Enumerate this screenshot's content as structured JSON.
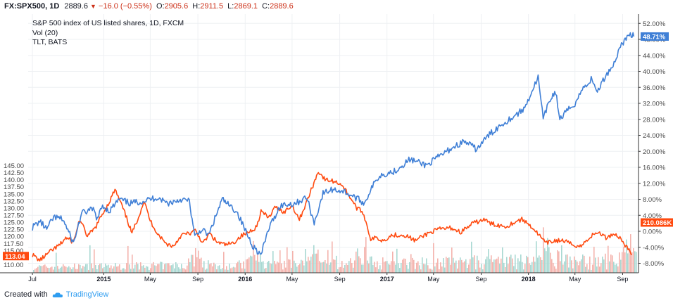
{
  "header": {
    "symbol": "FX:SPX500, 1D",
    "last": "2889.6",
    "change": "−16.0 (−0.55%)",
    "open_label": "O:",
    "open": "2905.6",
    "high_label": "H:",
    "high": "2911.5",
    "low_label": "L:",
    "low": "2869.1",
    "close_label": "C:",
    "close": "2889.6"
  },
  "legend": {
    "main": "S&P 500 index of US listed shares, 1D, FXCM",
    "volume": "Vol (20)",
    "compare": "TLT, BATS"
  },
  "footer": {
    "created_with": "Created with",
    "brand": "TradingView"
  },
  "colors": {
    "tlt": "#ff4a0f",
    "spx": "#3f7fd6",
    "vol_up": "#a8d8d2",
    "vol_down": "#f4b3ad",
    "grid": "#eef0f3",
    "axis": "#333333"
  },
  "chart_data": {
    "type": "line",
    "x_ticks": [
      "Jul",
      "2015",
      "May",
      "Sep",
      "2016",
      "May",
      "Sep",
      "2017",
      "May",
      "Sep",
      "2018",
      "May",
      "Sep"
    ],
    "year_ticks": [
      "2015",
      "2016",
      "2017",
      "2018"
    ],
    "left_axis": {
      "ticks": [
        "110.00",
        "112.50",
        "115.00",
        "117.50",
        "120.00",
        "122.50",
        "125.00",
        "127.50",
        "130.00",
        "132.50",
        "135.00",
        "137.50",
        "140.00",
        "142.50",
        "145.00"
      ],
      "range": [
        108.5,
        145.5
      ],
      "last_value_label": "113.04"
    },
    "right_axis": {
      "ticks": [
        "52.00%",
        "48.00%",
        "44.00%",
        "40.00%",
        "36.00%",
        "32.00%",
        "28.00%",
        "24.00%",
        "20.00%",
        "16.00%",
        "12.00%",
        "8.00%",
        "4.00%",
        "0.00%",
        "-4.00%",
        "-8.00%"
      ],
      "range": [
        -10.0,
        54.0
      ],
      "last_value_label": "48.71%",
      "volume_label": "210.086K"
    },
    "series": [
      {
        "name": "TLT, BATS",
        "axis": "left",
        "x": [
          "2014-07-01",
          "2014-07-20",
          "2014-08-15",
          "2014-09-10",
          "2014-09-25",
          "2014-10-15",
          "2014-10-31",
          "2014-11-20",
          "2014-12-10",
          "2014-12-31",
          "2015-01-15",
          "2015-01-30",
          "2015-02-15",
          "2015-03-01",
          "2015-03-15",
          "2015-04-01",
          "2015-04-15",
          "2015-05-01",
          "2015-05-20",
          "2015-06-10",
          "2015-06-30",
          "2015-07-20",
          "2015-08-10",
          "2015-08-25",
          "2015-09-15",
          "2015-10-01",
          "2015-10-20",
          "2015-11-10",
          "2015-11-30",
          "2015-12-20",
          "2016-01-10",
          "2016-01-31",
          "2016-02-11",
          "2016-03-01",
          "2016-03-20",
          "2016-04-10",
          "2016-05-01",
          "2016-05-20",
          "2016-06-10",
          "2016-06-24",
          "2016-07-08",
          "2016-07-25",
          "2016-08-15",
          "2016-09-05",
          "2016-09-25",
          "2016-10-15",
          "2016-10-31",
          "2016-11-10",
          "2016-11-20",
          "2016-12-05",
          "2016-12-20",
          "2017-01-15",
          "2017-02-15",
          "2017-03-15",
          "2017-04-15",
          "2017-05-15",
          "2017-06-15",
          "2017-07-10",
          "2017-08-10",
          "2017-09-08",
          "2017-09-25",
          "2017-10-15",
          "2017-11-05",
          "2017-11-25",
          "2017-12-15",
          "2018-01-05",
          "2018-01-25",
          "2018-02-15",
          "2018-03-10",
          "2018-04-01",
          "2018-04-25",
          "2018-05-17",
          "2018-06-10",
          "2018-07-01",
          "2018-07-20",
          "2018-08-10",
          "2018-08-25",
          "2018-09-10",
          "2018-09-25"
        ],
        "values": [
          113.5,
          111.5,
          114.5,
          117.0,
          119.5,
          118.0,
          126.0,
          120.0,
          123.0,
          128.5,
          132.0,
          136.5,
          131.5,
          126.5,
          121.0,
          127.0,
          132.5,
          125.5,
          121.0,
          117.5,
          116.5,
          120.5,
          121.0,
          122.0,
          117.5,
          121.0,
          118.0,
          117.0,
          117.5,
          120.0,
          121.5,
          123.5,
          129.0,
          126.5,
          130.5,
          128.5,
          131.0,
          126.0,
          133.0,
          138.0,
          143.0,
          140.0,
          139.5,
          138.5,
          134.5,
          130.0,
          128.5,
          124.0,
          119.0,
          119.5,
          118.5,
          120.5,
          120.5,
          118.5,
          121.0,
          122.5,
          123.0,
          121.5,
          124.5,
          126.0,
          124.5,
          124.0,
          123.5,
          125.0,
          126.0,
          124.0,
          121.0,
          117.5,
          118.5,
          118.5,
          117.0,
          116.5,
          120.0,
          121.5,
          119.5,
          121.0,
          119.5,
          116.5,
          113.5
        ]
      },
      {
        "name": "S&P 500 index of US listed shares, 1D, FXCM",
        "axis": "right",
        "x": [
          "2014-07-01",
          "2014-07-20",
          "2014-08-07",
          "2014-08-25",
          "2014-09-18",
          "2014-10-15",
          "2014-11-05",
          "2014-12-05",
          "2014-12-16",
          "2014-12-29",
          "2015-01-15",
          "2015-02-10",
          "2015-03-10",
          "2015-04-10",
          "2015-05-20",
          "2015-06-15",
          "2015-07-20",
          "2015-08-10",
          "2015-08-24",
          "2015-09-10",
          "2015-09-29",
          "2015-10-20",
          "2015-11-03",
          "2015-11-20",
          "2015-12-10",
          "2016-01-05",
          "2016-01-20",
          "2016-02-11",
          "2016-03-01",
          "2016-04-01",
          "2016-05-10",
          "2016-06-08",
          "2016-06-27",
          "2016-07-20",
          "2016-08-15",
          "2016-09-12",
          "2016-10-10",
          "2016-11-04",
          "2016-11-20",
          "2016-12-13",
          "2017-01-20",
          "2017-03-01",
          "2017-04-13",
          "2017-05-20",
          "2017-06-20",
          "2017-07-20",
          "2017-08-20",
          "2017-09-20",
          "2017-10-20",
          "2017-11-20",
          "2017-12-20",
          "2018-01-10",
          "2018-01-26",
          "2018-02-08",
          "2018-02-26",
          "2018-03-12",
          "2018-03-23",
          "2018-04-10",
          "2018-05-01",
          "2018-05-20",
          "2018-06-12",
          "2018-06-28",
          "2018-07-20",
          "2018-08-10",
          "2018-08-29",
          "2018-09-10",
          "2018-09-21",
          "2018-09-30"
        ],
        "values": [
          1.0,
          2.5,
          0.5,
          3.5,
          3.0,
          -3.0,
          4.5,
          5.5,
          3.0,
          6.5,
          5.0,
          8.0,
          7.0,
          7.5,
          8.5,
          7.0,
          8.0,
          7.5,
          -1.5,
          0.5,
          -1.0,
          4.5,
          8.0,
          6.5,
          5.0,
          -0.5,
          -3.5,
          -6.0,
          0.5,
          6.5,
          7.0,
          8.5,
          2.0,
          9.5,
          10.5,
          10.0,
          8.5,
          7.0,
          10.5,
          14.0,
          15.0,
          18.0,
          16.5,
          19.0,
          21.0,
          22.5,
          20.5,
          24.0,
          26.5,
          28.5,
          30.5,
          35.0,
          38.5,
          28.0,
          33.0,
          35.0,
          28.0,
          30.0,
          32.0,
          35.5,
          38.0,
          35.0,
          39.0,
          42.0,
          47.0,
          48.0,
          49.5,
          48.7
        ]
      }
    ]
  }
}
